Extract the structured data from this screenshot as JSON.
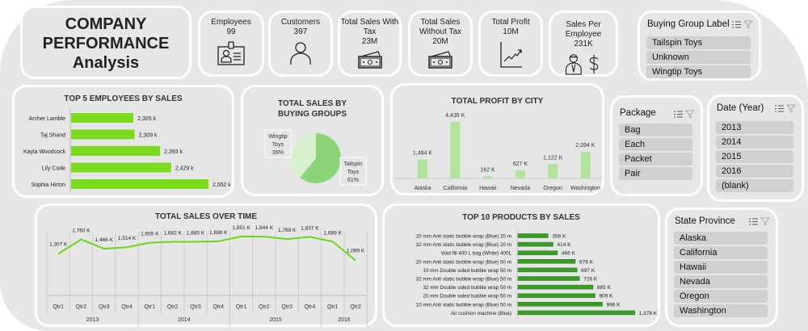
{
  "header": {
    "title_line1": "COMPANY",
    "title_line2": "PERFORMANCE",
    "title_line3": "Analysis"
  },
  "kpis": [
    {
      "label": "Employees",
      "value": "99",
      "icon": "id-badge-icon"
    },
    {
      "label": "Customers",
      "value": "397",
      "icon": "person-icon"
    },
    {
      "label": "Total Sales With Tax",
      "value": "23M",
      "icon": "cash-icon"
    },
    {
      "label": "Total Sales Without Tax",
      "value": "20M",
      "icon": "cash-icon"
    },
    {
      "label": "Total Profit",
      "value": "10M",
      "icon": "line-chart-up-icon"
    },
    {
      "label": "Sales Per Employee",
      "value": "231K",
      "icon": "employee-dollar-icon"
    }
  ],
  "slicers": {
    "buying_group": {
      "title": "Buying Group Label",
      "items": [
        "Tailspin Toys",
        "Unknown",
        "Wingtip Toys"
      ]
    },
    "package": {
      "title": "Package",
      "items": [
        "Bag",
        "Each",
        "Packet",
        "Pair"
      ]
    },
    "date_year": {
      "title": "Date (Year)",
      "items": [
        "2013",
        "2014",
        "2015",
        "2016",
        "(blank)"
      ]
    },
    "state_province": {
      "title": "State Province",
      "items": [
        "Alaska",
        "California",
        "Hawaii",
        "Nevada",
        "Oregon",
        "Washington"
      ]
    }
  },
  "chart_data": [
    {
      "type": "bar",
      "orientation": "horizontal",
      "title": "TOP 5 EMPLOYEES BY SALES",
      "categories": [
        "Archer Lamble",
        "Taj Shand",
        "Kayla Woodcock",
        "Lily Code",
        "Sophia Hirton"
      ],
      "values": [
        2305,
        2309,
        2393,
        2429,
        2552
      ],
      "data_labels": [
        "2,305 k",
        "2,309 k",
        "2,393 k",
        "2,429 k",
        "2,552 k"
      ],
      "xlim": [
        2100,
        2600
      ],
      "color": "#7ddb1f"
    },
    {
      "type": "pie",
      "title": "TOTAL SALES BY BUYING GROUPS",
      "slices": [
        {
          "name": "Tailspin Toys",
          "label_line1": "Tailspin",
          "label_line2": "Toys",
          "percent": 61,
          "percent_label": "61%",
          "color": "#8bd477"
        },
        {
          "name": "Wingtip Toys",
          "label_line1": "Wingtip",
          "label_line2": "Toys",
          "percent": 39,
          "percent_label": "39%",
          "color": "#d7f0cd"
        }
      ]
    },
    {
      "type": "bar",
      "title": "TOTAL PROFIT BY CITY",
      "categories": [
        "Alaska",
        "California",
        "Hawaii",
        "Nevada",
        "Oregon",
        "Washington"
      ],
      "values": [
        1484,
        4435,
        162,
        627,
        1122,
        2094
      ],
      "data_labels": [
        "1,484 K",
        "4,435 K",
        "162 K",
        "627 K",
        "1,122 K",
        "2,094 K"
      ],
      "color": "#b2e39c"
    },
    {
      "type": "line",
      "title": "TOTAL SALES OVER TIME",
      "categories": [
        "Qtr1",
        "Qtr2",
        "Qtr3",
        "Qtr4",
        "Qtr1",
        "Qtr2",
        "Qtr3",
        "Qtr4",
        "Qtr1",
        "Qtr2",
        "Qtr3",
        "Qtr4",
        "Qtr1",
        "Qtr2"
      ],
      "years": [
        {
          "label": "2013",
          "quarters": 4
        },
        {
          "label": "2014",
          "quarters": 4
        },
        {
          "label": "2015",
          "quarters": 4
        },
        {
          "label": "2016",
          "quarters": 2
        }
      ],
      "values": [
        1307,
        1760,
        1466,
        1514,
        1655,
        1682,
        1685,
        1698,
        1851,
        1844,
        1769,
        1837,
        1689,
        1099
      ],
      "data_labels": [
        "1,307 K",
        "1,760 K",
        "1,466 K",
        "1,514 K",
        "1,655 K",
        "1,682 K",
        "1,685 K",
        "1,698 K",
        "1,851 K",
        "1,844 K",
        "1,769 K",
        "1,837 K",
        "1,689 K",
        "1,099 K"
      ],
      "ylim": [
        0,
        2000
      ],
      "color": "#66d914"
    },
    {
      "type": "bar",
      "orientation": "horizontal",
      "title": "TOP 10 PRODUCTS BY SALES",
      "categories": [
        "20 mm Anti static bubble wrap (Blue) 20 m",
        "32 mm Anti static bubble wrap (Blue) 20 m",
        "Void fill 400 L bag (White) 400L",
        "20 mm Anti static bubble wrap (Blue) 50 m",
        "10 mm Double sided bubble wrap 50 m",
        "32 mm Anti static bubble wrap (Blue) 50 m",
        "32 mm Double sided bubble wrap 50 m",
        "20 mm Double sided bubble wrap 50 m",
        "10 mm Anti static bubble wrap (Blue) 50 m",
        "Air cushion machine (Blue)"
      ],
      "values": [
        356,
        414,
        466,
        676,
        697,
        726,
        885,
        909,
        996,
        1378
      ],
      "data_labels": [
        "356 K",
        "414 K",
        "466 K",
        "676 K",
        "697 K",
        "726 K",
        "885 K",
        "909 K",
        "996 K",
        "1,378 K"
      ],
      "xlim": [
        0,
        1400
      ],
      "color": "#3a9b26"
    }
  ]
}
